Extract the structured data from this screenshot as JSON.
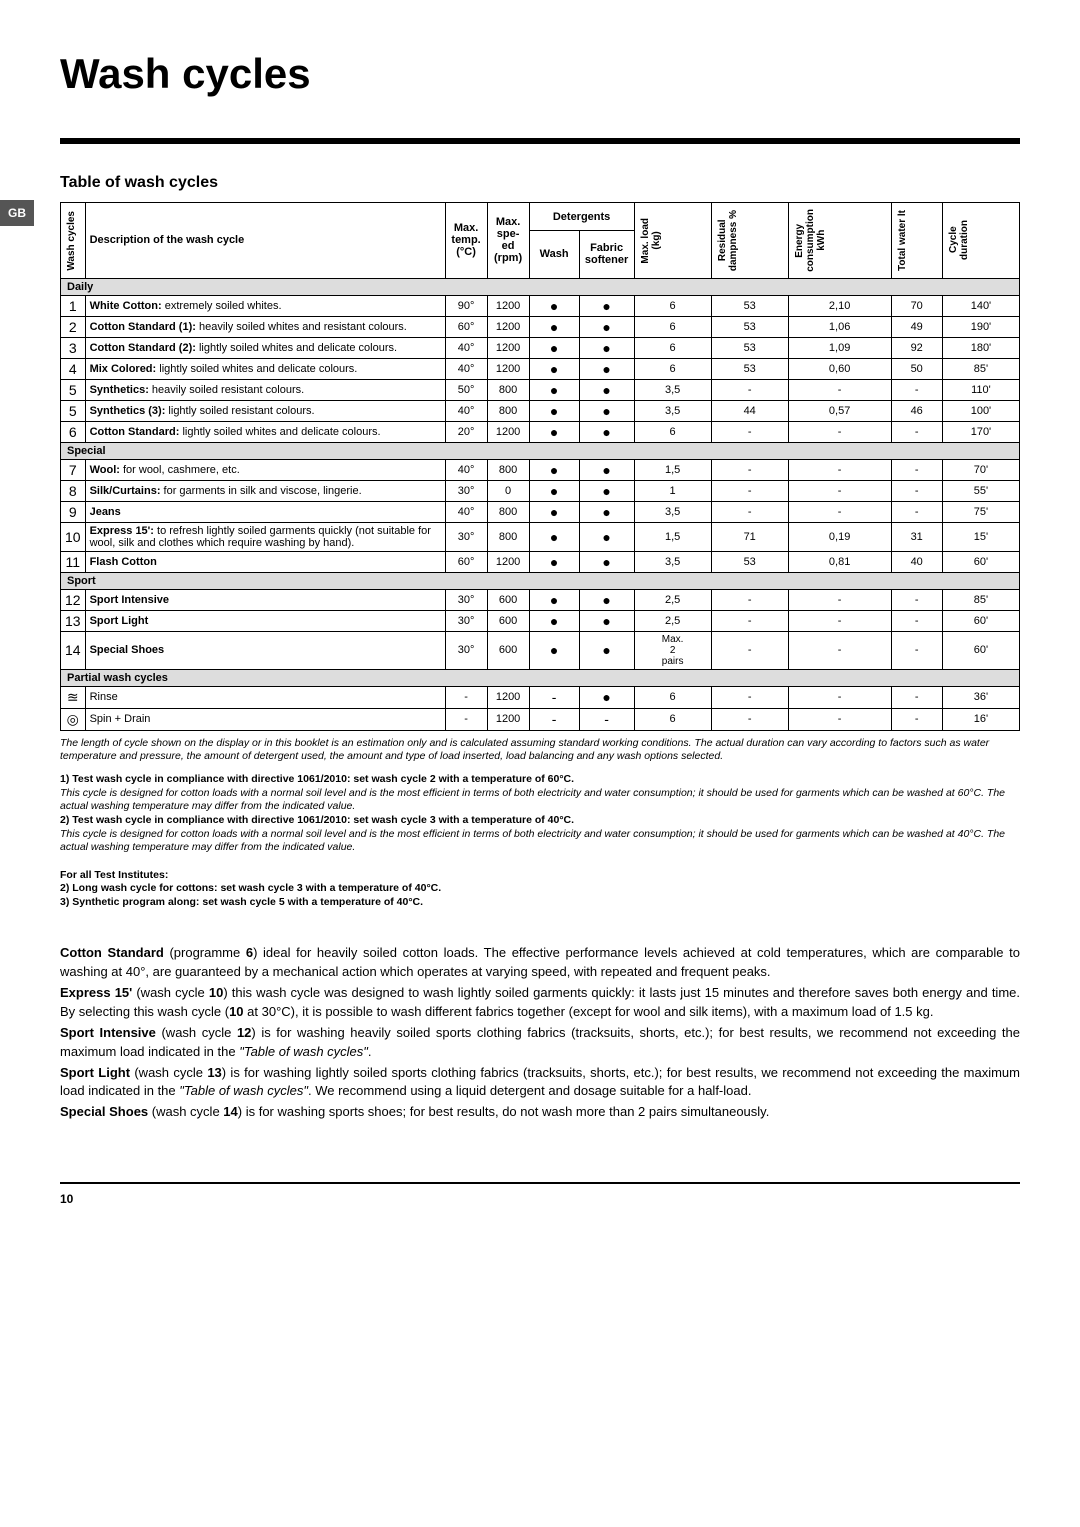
{
  "title": "Wash cycles",
  "gb": "GB",
  "subtitle": "Table of wash cycles",
  "headers": {
    "cycles": "Wash cycles",
    "desc": "Description of the wash cycle",
    "temp": "Max.\ntemp.\n(°C)",
    "speed": "Max.\nspe-\ned\n(rpm)",
    "detergents": "Detergents",
    "wash": "Wash",
    "softener": "Fabric\nsoftener",
    "load": "Max. load\n(kg)",
    "damp": "Residual\ndampness %",
    "energy": "Energy\nconsumption\nkWh",
    "water": "Total water lt",
    "duration": "Cycle\nduration"
  },
  "sections": [
    {
      "name": "Daily",
      "rows": [
        {
          "n": "1",
          "desc": "<b>White Cotton:</b> extremely soiled whites.",
          "t": "90°",
          "s": "1200",
          "w": "●",
          "f": "●",
          "l": "6",
          "d": "53",
          "e": "2,10",
          "tw": "70",
          "cd": "140'"
        },
        {
          "n": "2",
          "desc": "<b>Cotton Standard (1):</b> heavily soiled whites and resistant colours.",
          "t": "60°",
          "s": "1200",
          "w": "●",
          "f": "●",
          "l": "6",
          "d": "53",
          "e": "1,06",
          "tw": "49",
          "cd": "190'"
        },
        {
          "n": "3",
          "desc": "<b>Cotton Standard (2):</b> lightly soiled whites and delicate colours.",
          "t": "40°",
          "s": "1200",
          "w": "●",
          "f": "●",
          "l": "6",
          "d": "53",
          "e": "1,09",
          "tw": "92",
          "cd": "180'"
        },
        {
          "n": "4",
          "desc": "<b>Mix Colored:</b> lightly soiled whites and delicate colours.",
          "t": "40°",
          "s": "1200",
          "w": "●",
          "f": "●",
          "l": "6",
          "d": "53",
          "e": "0,60",
          "tw": "50",
          "cd": "85'"
        },
        {
          "n": "5",
          "desc": "<b>Synthetics:</b> heavily soiled resistant colours.",
          "t": "50°",
          "s": "800",
          "w": "●",
          "f": "●",
          "l": "3,5",
          "d": "-",
          "e": "-",
          "tw": "-",
          "cd": "110'"
        },
        {
          "n": "5",
          "desc": "<b>Synthetics (3):</b> lightly soiled resistant colours.",
          "t": "40°",
          "s": "800",
          "w": "●",
          "f": "●",
          "l": "3,5",
          "d": "44",
          "e": "0,57",
          "tw": "46",
          "cd": "100'"
        },
        {
          "n": "6",
          "desc": "<b>Cotton Standard:</b> lightly soiled whites and delicate colours.",
          "t": "20°",
          "s": "1200",
          "w": "●",
          "f": "●",
          "l": "6",
          "d": "-",
          "e": "-",
          "tw": "-",
          "cd": "170'"
        }
      ]
    },
    {
      "name": "Special",
      "rows": [
        {
          "n": "7",
          "desc": "<b>Wool:</b> for wool, cashmere, etc.",
          "t": "40°",
          "s": "800",
          "w": "●",
          "f": "●",
          "l": "1,5",
          "d": "-",
          "e": "-",
          "tw": "-",
          "cd": "70'"
        },
        {
          "n": "8",
          "desc": "<b>Silk/Curtains:</b> for garments in silk and viscose, lingerie.",
          "t": "30°",
          "s": "0",
          "w": "●",
          "f": "●",
          "l": "1",
          "d": "-",
          "e": "-",
          "tw": "-",
          "cd": "55'"
        },
        {
          "n": "9",
          "desc": "<b>Jeans</b>",
          "t": "40°",
          "s": "800",
          "w": "●",
          "f": "●",
          "l": "3,5",
          "d": "-",
          "e": "-",
          "tw": "-",
          "cd": "75'"
        },
        {
          "n": "10",
          "desc": "<b>Express 15':</b> to refresh lightly soiled garments quickly (not suitable for wool, silk and clothes which require washing by hand).",
          "t": "30°",
          "s": "800",
          "w": "●",
          "f": "●",
          "l": "1,5",
          "d": "71",
          "e": "0,19",
          "tw": "31",
          "cd": "15'"
        },
        {
          "n": "11",
          "desc": "<b>Flash Cotton</b>",
          "t": "60°",
          "s": "1200",
          "w": "●",
          "f": "●",
          "l": "3,5",
          "d": "53",
          "e": "0,81",
          "tw": "40",
          "cd": "60'"
        }
      ]
    },
    {
      "name": "Sport",
      "rows": [
        {
          "n": "12",
          "desc": "<b>Sport Intensive</b>",
          "t": "30°",
          "s": "600",
          "w": "●",
          "f": "●",
          "l": "2,5",
          "d": "-",
          "e": "-",
          "tw": "-",
          "cd": "85'"
        },
        {
          "n": "13",
          "desc": "<b>Sport Light</b>",
          "t": "30°",
          "s": "600",
          "w": "●",
          "f": "●",
          "l": "2,5",
          "d": "-",
          "e": "-",
          "tw": "-",
          "cd": "60'"
        },
        {
          "n": "14",
          "desc": "<b>Special Shoes</b>",
          "t": "30°",
          "s": "600",
          "w": "●",
          "f": "●",
          "l": "Max.\n2\npairs",
          "d": "-",
          "e": "-",
          "tw": "-",
          "cd": "60'"
        }
      ]
    },
    {
      "name": "Partial wash cycles",
      "rows": [
        {
          "n": "≊",
          "desc": "Rinse",
          "t": "-",
          "s": "1200",
          "w": "-",
          "f": "●",
          "l": "6",
          "d": "-",
          "e": "-",
          "tw": "-",
          "cd": "36'"
        },
        {
          "n": "◎",
          "desc": "Spin + Drain",
          "t": "-",
          "s": "1200",
          "w": "-",
          "f": "-",
          "l": "6",
          "d": "-",
          "e": "-",
          "tw": "-",
          "cd": "16'"
        }
      ]
    }
  ],
  "footnote": "The length of cycle shown on the display or in this booklet is an estimation only and is calculated assuming standard working conditions. The actual duration can vary according to factors such as water temperature and pressure, the amount of detergent used, the amount and type of load inserted, load balancing and any wash options selected.",
  "tests": {
    "t1b": "1) Test wash cycle in compliance with directive 1061/2010: set wash cycle 2 with a temperature of 60°C.",
    "t1": "This cycle is designed for cotton loads with a normal soil level and is the most efficient in terms of both electricity and water consumption; it should be used for garments which can be washed at 60°C. The actual washing temperature may differ from the indicated value.",
    "t2b": "2) Test wash cycle in compliance with directive 1061/2010: set wash cycle 3 with a temperature of 40°C.",
    "t2": "This cycle is designed for cotton loads with a normal soil level and is the most efficient in terms of both electricity and water consumption; it should be used for garments which can be washed at 40°C. The actual washing temperature may differ from the indicated value.",
    "inst": "For all Test Institutes:",
    "i2": "2) Long wash cycle for cottons: set wash cycle 3 with a temperature of 40°C.",
    "i3": "3) Synthetic program along: set wash cycle 5 with a temperature of 40°C."
  },
  "body": [
    "<b>Cotton Standard</b> (programme <b>6</b>) ideal for heavily soiled cotton loads. The effective performance levels achieved at cold temperatures, which are comparable to washing at 40°, are guaranteed by a mechanical action which operates at varying speed, with repeated and frequent peaks.",
    "<b>Express 15'</b> (wash cycle <b>10</b>) this wash cycle was designed to wash lightly soiled garments quickly: it lasts just 15 minutes and therefore saves both energy and time. By selecting this wash cycle (<b>10</b> at 30°C), it is possible to wash different fabrics together (except for wool and silk items), with a maximum load of 1.5 kg.",
    "<b>Sport Intensive</b> (wash cycle <b>12</b>) is for washing heavily soiled sports clothing fabrics (tracksuits, shorts, etc.); for best results, we recommend not exceeding the maximum load indicated in the <i>\"Table of wash cycles\"</i>.",
    "<b>Sport Light</b> (wash cycle <b>13</b>) is for washing lightly soiled sports clothing fabrics (tracksuits, shorts, etc.); for best results, we recommend not exceeding the maximum load indicated in the <i>\"Table of wash cycles\"</i>. We recommend using a liquid detergent and dosage suitable for a half-load.",
    "<b>Special Shoes</b> (wash cycle <b>14</b>) is for washing sports shoes; for best results, do not wash more than 2 pairs simultaneously."
  ],
  "pageNum": "10"
}
